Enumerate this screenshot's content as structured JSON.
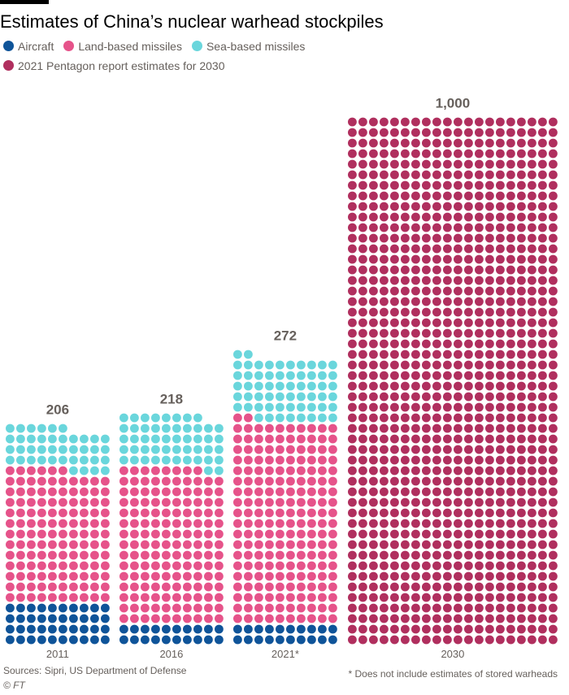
{
  "title": "Estimates of China’s nuclear warhead stockpiles",
  "legend": [
    {
      "label": "Aircraft",
      "color": "#0f5499"
    },
    {
      "label": "Land-based missiles",
      "color": "#e6538a"
    },
    {
      "label": "Sea-based missiles",
      "color": "#6ad6dc"
    },
    {
      "label": "2021 Pentagon report estimates for 2030",
      "color": "#b02f5e"
    }
  ],
  "chart_data": {
    "type": "waffle",
    "categories": [
      "2011",
      "2016",
      "2021*",
      "2030"
    ],
    "totals_labels": [
      "206",
      "218",
      "272",
      "1,000"
    ],
    "series": [
      {
        "name": "Aircraft",
        "values": [
          40,
          20,
          20,
          0
        ]
      },
      {
        "name": "Land-based missiles",
        "values": [
          126,
          148,
          192,
          0
        ]
      },
      {
        "name": "Sea-based missiles",
        "values": [
          40,
          50,
          60,
          0
        ]
      },
      {
        "name": "2021 Pentagon report estimates for 2030",
        "values": [
          0,
          0,
          0,
          1000
        ]
      }
    ]
  },
  "footer": {
    "source": "Sources: Sipri, US Department of Defense",
    "credit": "© FT",
    "footnote": "* Does not include estimates of stored warheads"
  }
}
